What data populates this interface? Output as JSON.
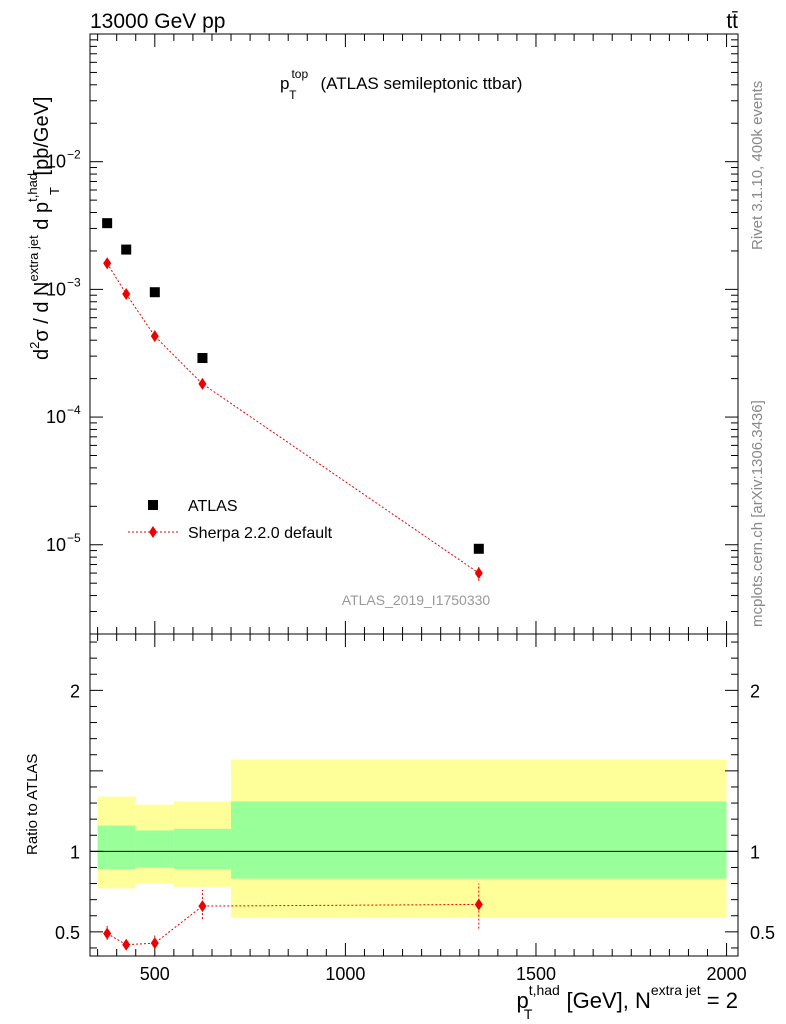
{
  "header": {
    "left": "13000 GeV pp",
    "right": "tt̄"
  },
  "title": {
    "main": "p",
    "sup": "top",
    "sub": "T",
    "rest": "(ATLAS semileptonic ttbar)"
  },
  "side_labels": {
    "rivet": "Rivet 3.1.10,  400k events",
    "mcplots": "mcplots.cern.ch [arXiv:1306.3436]"
  },
  "watermark": "ATLAS_2019_I1750330",
  "colors": {
    "data": "#000000",
    "mc": "#ee0000",
    "band_stat": "#99ff99",
    "band_total": "#ffff99"
  },
  "chart_data": [
    {
      "type": "scatter",
      "panel": "main",
      "ylabel": {
        "parts": [
          "d",
          "2",
          "σ / d N",
          "extra jet",
          " d p",
          "t,had",
          "T",
          " [pb/GeV]"
        ]
      },
      "xlim": [
        330,
        2030
      ],
      "ylim": [
        2e-06,
        0.1
      ],
      "yscale": "log",
      "ytick_labels": [
        {
          "value": 1e-05,
          "base": "10",
          "exp": "−5"
        },
        {
          "value": 0.0001,
          "base": "10",
          "exp": "−4"
        },
        {
          "value": 0.001,
          "base": "10",
          "exp": "−3"
        },
        {
          "value": 0.01,
          "base": "10",
          "exp": "−2"
        }
      ],
      "legend_position": "bottom-left",
      "series": [
        {
          "name": "ATLAS",
          "marker": "square",
          "x": [
            375,
            425,
            500,
            625,
            1350
          ],
          "y": [
            0.0033,
            0.00205,
            0.00095,
            0.00029,
            9.3e-06
          ]
        },
        {
          "name": "Sherpa 2.2.0 default",
          "marker": "diamond",
          "x": [
            375,
            425,
            500,
            625,
            1350
          ],
          "y": [
            0.0016,
            0.00092,
            0.00043,
            0.000182,
            6e-06
          ],
          "err_low": [
            0.00145,
            0.00086,
            0.0004,
            0.000167,
            5.2e-06
          ],
          "err_high": [
            0.00177,
            0.00099,
            0.00047,
            0.000198,
            6.9e-06
          ]
        }
      ]
    },
    {
      "type": "line",
      "panel": "ratio",
      "ylabel": "Ratio to ATLAS",
      "xlim": [
        330,
        2030
      ],
      "ylim": [
        0.35,
        2.35
      ],
      "xticks": [
        500,
        1000,
        1500,
        2000
      ],
      "xtick_labels": [
        "500",
        "1000",
        "1500",
        "2000"
      ],
      "yticks": [
        0.5,
        1,
        2
      ],
      "ytick_labels": [
        "0.5",
        "1",
        "2"
      ],
      "bins": [
        {
          "lo": 350,
          "hi": 450,
          "stat_lo": 0.89,
          "stat_hi": 1.16,
          "tot_lo": 0.77,
          "tot_hi": 1.34
        },
        {
          "lo": 450,
          "hi": 550,
          "stat_lo": 0.9,
          "stat_hi": 1.13,
          "tot_lo": 0.8,
          "tot_hi": 1.29
        },
        {
          "lo": 550,
          "hi": 700,
          "stat_lo": 0.89,
          "stat_hi": 1.14,
          "tot_lo": 0.78,
          "tot_hi": 1.31
        },
        {
          "lo": 700,
          "hi": 2000,
          "stat_lo": 0.83,
          "stat_hi": 1.31,
          "tot_lo": 0.59,
          "tot_hi": 1.57
        }
      ],
      "series": [
        {
          "name": "Sherpa 2.2.0 default",
          "x": [
            375,
            425,
            500,
            625,
            1350
          ],
          "y": [
            0.49,
            0.42,
            0.43,
            0.66,
            0.67
          ],
          "err_low": [
            0.45,
            0.39,
            0.39,
            0.58,
            0.52
          ],
          "err_high": [
            0.54,
            0.46,
            0.48,
            0.76,
            0.8
          ]
        }
      ]
    }
  ],
  "xlabel": {
    "p": "p",
    "sup": "t,had",
    "sub": "T",
    "mid": " [GeV], N",
    "sup2": "extra jet",
    "end": " = 2"
  }
}
